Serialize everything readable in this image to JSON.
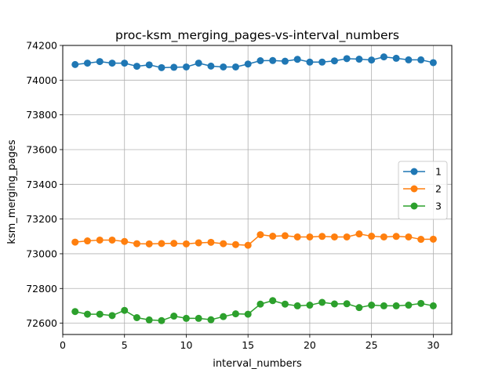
{
  "chart_data": {
    "type": "line",
    "title": "proc-ksm_merging_pages-vs-interval_numbers",
    "xlabel": "interval_numbers",
    "ylabel": "ksm_merging_pages",
    "xlim": [
      0,
      31.5
    ],
    "ylim": [
      72535,
      74200
    ],
    "x_ticks": [
      0,
      5,
      10,
      15,
      20,
      25,
      30
    ],
    "y_ticks": [
      72600,
      72800,
      73000,
      73200,
      73400,
      73600,
      73800,
      74000,
      74200
    ],
    "grid": true,
    "legend_position": "center-right",
    "x": [
      1,
      2,
      3,
      4,
      5,
      6,
      7,
      8,
      9,
      10,
      11,
      12,
      13,
      14,
      15,
      16,
      17,
      18,
      19,
      20,
      21,
      22,
      23,
      24,
      25,
      26,
      27,
      28,
      29,
      30
    ],
    "series": [
      {
        "name": "1",
        "color": "#1f77b4",
        "values": [
          74090,
          74098,
          74107,
          74098,
          74098,
          74080,
          74088,
          74072,
          74074,
          74076,
          74098,
          74081,
          74076,
          74076,
          74093,
          74112,
          74113,
          74109,
          74120,
          74104,
          74104,
          74111,
          74124,
          74121,
          74116,
          74134,
          74126,
          74117,
          74117,
          74101
        ]
      },
      {
        "name": "2",
        "color": "#ff7f0e",
        "values": [
          73067,
          73074,
          73079,
          73079,
          73071,
          73058,
          73057,
          73059,
          73060,
          73057,
          73063,
          73066,
          73058,
          73053,
          73049,
          73110,
          73101,
          73104,
          73097,
          73097,
          73100,
          73097,
          73097,
          73114,
          73101,
          73097,
          73100,
          73097,
          73083,
          73084
        ]
      },
      {
        "name": "3",
        "color": "#2ca02c",
        "values": [
          72667,
          72652,
          72652,
          72644,
          72674,
          72632,
          72619,
          72615,
          72641,
          72628,
          72628,
          72620,
          72638,
          72654,
          72652,
          72710,
          72730,
          72710,
          72700,
          72704,
          72720,
          72711,
          72712,
          72690,
          72704,
          72700,
          72700,
          72704,
          72714,
          72700
        ]
      }
    ]
  }
}
